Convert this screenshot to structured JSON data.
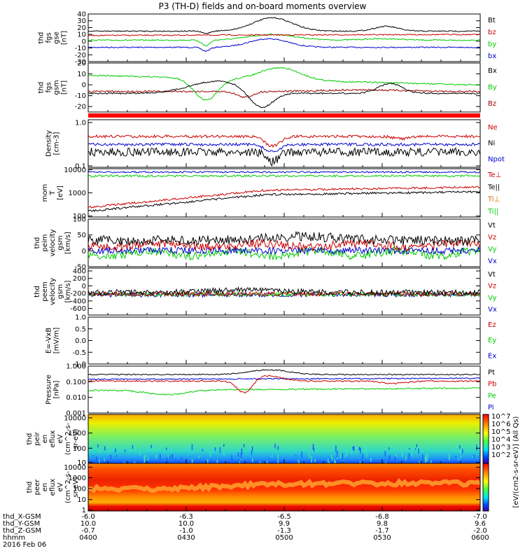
{
  "title": "P3 (TH-D) fields and on-board moments overview",
  "chart_data": {
    "type": "line",
    "title": "P3 (TH-D) fields and on-board moments overview",
    "x_axis": {
      "ticks": [
        {
          "hhmm": "0400",
          "x": "-6.0",
          "y": "10.0",
          "z": "-0.7"
        },
        {
          "hhmm": "0430",
          "x": "-6.3",
          "y": "10.0",
          "z": "-1.0"
        },
        {
          "hhmm": "0500",
          "x": "-6.5",
          "y": "9.9",
          "z": "-1.3"
        },
        {
          "hhmm": "0530",
          "x": "-6.8",
          "y": "9.8",
          "z": "-1.7"
        },
        {
          "hhmm": "0600",
          "x": "-7.0",
          "y": "9.6",
          "z": "-2.0"
        }
      ],
      "rows": [
        "thd_X-GSM",
        "thd_Y-GSM",
        "thd_Z-GSM",
        "hhmm"
      ],
      "date": "2016 Feb 06"
    },
    "panels": [
      {
        "id": "fgs_gse",
        "ylabel": [
          "thd",
          "fgs",
          "gse",
          "[nT]"
        ],
        "ylim": [
          -30,
          40
        ],
        "ticks": [
          "40",
          "30",
          "20",
          "10",
          "0",
          "-10",
          "-20",
          "-30"
        ],
        "legend": [
          {
            "label": "Bt",
            "color": "#000000"
          },
          {
            "label": "bz",
            "color": "#cc0000"
          },
          {
            "label": "by",
            "color": "#00cc00"
          },
          {
            "label": "bx",
            "color": "#0000cc"
          }
        ]
      },
      {
        "id": "fgs_gsm",
        "ylabel": [
          "thd",
          "fgs",
          "gsm",
          "[nT]"
        ],
        "ylim": [
          -25,
          20
        ],
        "ticks": [
          "20",
          "10",
          "0",
          "-10",
          "-20"
        ],
        "legend": [
          {
            "label": "Bx",
            "color": "#000000"
          },
          {
            "label": "By",
            "color": "#00cc00"
          },
          {
            "label": "Bz",
            "color": "#990000"
          }
        ]
      },
      {
        "id": "density",
        "ylabel": [
          "Density",
          "[cm-3]"
        ],
        "log": true,
        "ticks": [
          "1.0",
          "0.1"
        ],
        "legend": [
          {
            "label": "Ne",
            "color": "#cc0000"
          },
          {
            "label": "Ni",
            "color": "#000000"
          },
          {
            "label": "Npot",
            "color": "#0000cc"
          }
        ]
      },
      {
        "id": "temp",
        "ylabel": [
          "mom",
          "T",
          "[eV]"
        ],
        "log": true,
        "ticks": [
          "10000",
          "1000",
          "100"
        ],
        "legend": [
          {
            "label": "Te⊥",
            "color": "#cc0000"
          },
          {
            "label": "Te||",
            "color": "#000000"
          },
          {
            "label": "Ti⊥",
            "color": "#cc6600"
          },
          {
            "label": "Ti||",
            "color": "#00cc00"
          }
        ]
      },
      {
        "id": "peim_vel",
        "ylabel": [
          "thd",
          "peim",
          "velocity",
          "gsm",
          "[km/s]"
        ],
        "ylim": [
          -50,
          100
        ],
        "ticks": [
          "100",
          "50",
          "0",
          "-50"
        ],
        "legend": [
          {
            "label": "Vt",
            "color": "#000000"
          },
          {
            "label": "Vz",
            "color": "#cc0000"
          },
          {
            "label": "Vy",
            "color": "#00cc00"
          },
          {
            "label": "Vx",
            "color": "#0000cc"
          }
        ]
      },
      {
        "id": "peem_vel",
        "ylabel": [
          "thd",
          "peem",
          "velocity",
          "gsm",
          "[km/s]"
        ],
        "ylim": [
          -600,
          400
        ],
        "ticks": [
          "400",
          "200",
          "0",
          "-200",
          "-400",
          "-600"
        ],
        "legend": [
          {
            "label": "Vt",
            "color": "#000000"
          },
          {
            "label": "Vz",
            "color": "#cc0000"
          },
          {
            "label": "Vy",
            "color": "#00cc00"
          },
          {
            "label": "Vx",
            "color": "#0000cc"
          }
        ]
      },
      {
        "id": "efield",
        "ylabel": [
          "E=-VxB",
          "[mV/m]"
        ],
        "ylim": [
          -1,
          1
        ],
        "ticks": [
          "1.0",
          "0.5",
          "0.0",
          "-0.5",
          "-1.0"
        ],
        "legend": [
          {
            "label": "Ez",
            "color": "#cc0000"
          },
          {
            "label": "Ey",
            "color": "#00cc00"
          },
          {
            "label": "Ex",
            "color": "#0000cc"
          }
        ]
      },
      {
        "id": "pressure",
        "ylabel": [
          "Pressure",
          "[nPa]"
        ],
        "log": true,
        "ticks": [
          "1.000",
          "0.100",
          "0.010",
          "0.001"
        ],
        "legend": [
          {
            "label": "Pt",
            "color": "#000000"
          },
          {
            "label": "Pb",
            "color": "#cc0000"
          },
          {
            "label": "Pe",
            "color": "#00cc00"
          },
          {
            "label": "Pi",
            "color": "#0000cc"
          }
        ]
      },
      {
        "id": "peir_eflux",
        "ylabel": [
          "thd",
          "peir",
          "en",
          "eflux",
          "eV",
          "(cm^2-s-",
          "sr-eV)"
        ],
        "log": true,
        "ticks": [
          "10000",
          "1000",
          "100",
          "10"
        ]
      },
      {
        "id": "peer_eflux",
        "ylabel": [
          "thd",
          "peer",
          "en",
          "eflux",
          "eV",
          "(cm^2-s-",
          "sr-eV)"
        ],
        "log": true,
        "ticks": [
          "10000",
          "1000",
          "100",
          "10",
          "1"
        ]
      }
    ],
    "colorbar": {
      "label": "[eV/(cm2-s-sr-eV)] (All Qs)",
      "ticks": [
        "10^7",
        "10^6",
        "10^5",
        "10^4",
        "10^3",
        "10^2"
      ]
    }
  }
}
